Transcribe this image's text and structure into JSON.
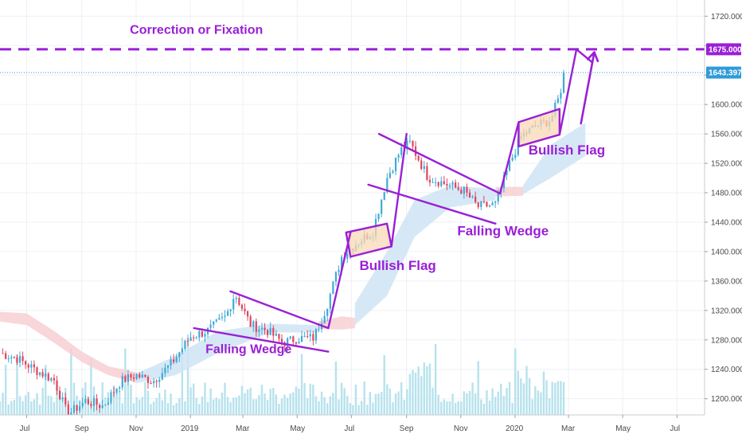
{
  "chart_data": {
    "type": "candlestick",
    "instrument_note": "",
    "x_ticks": [
      "Jul",
      "Sep",
      "Nov",
      "2019",
      "Mar",
      "May",
      "Jul",
      "Sep",
      "Nov",
      "2020",
      "Mar",
      "May",
      "Jul"
    ],
    "y_ticks": [
      1200,
      1240,
      1280,
      1320,
      1360,
      1400,
      1440,
      1480,
      1520,
      1560,
      1600,
      1640,
      1680,
      1720
    ],
    "y_tick_labels": [
      "1200.000",
      "1240.000",
      "1280.000",
      "1320.000",
      "1360.000",
      "1400.000",
      "1440.000",
      "1480.000",
      "1520.000",
      "1560.000",
      "1600.000",
      "",
      "",
      "1720.000"
    ],
    "ylim": [
      1178,
      1742
    ],
    "x_range": [
      "2018-06-01",
      "2020-08-01"
    ],
    "grid": true,
    "price_labels": [
      {
        "value": 1675,
        "text": "1675.000",
        "color": "#9a1fd6"
      },
      {
        "value": 1643.397,
        "text": "1643.397",
        "color": "#2f9bd9"
      }
    ],
    "horizontal_lines": [
      {
        "value": 1675,
        "style": "dashed",
        "color": "#9a1fd6"
      },
      {
        "value": 1643.397,
        "style": "dotted",
        "color": "#2f9bd9"
      }
    ],
    "price_path": [
      {
        "date": "2018-06-01",
        "price": 1262
      },
      {
        "date": "2018-06-20",
        "price": 1255
      },
      {
        "date": "2018-07-10",
        "price": 1240
      },
      {
        "date": "2018-08-01",
        "price": 1225
      },
      {
        "date": "2018-08-16",
        "price": 1178
      },
      {
        "date": "2018-09-05",
        "price": 1197
      },
      {
        "date": "2018-09-25",
        "price": 1190
      },
      {
        "date": "2018-10-15",
        "price": 1224
      },
      {
        "date": "2018-11-01",
        "price": 1232
      },
      {
        "date": "2018-11-20",
        "price": 1224
      },
      {
        "date": "2018-12-10",
        "price": 1247
      },
      {
        "date": "2019-01-01",
        "price": 1284
      },
      {
        "date": "2019-01-20",
        "price": 1292
      },
      {
        "date": "2019-02-10",
        "price": 1312
      },
      {
        "date": "2019-02-20",
        "price": 1343
      },
      {
        "date": "2019-03-10",
        "price": 1300
      },
      {
        "date": "2019-03-28",
        "price": 1293
      },
      {
        "date": "2019-04-15",
        "price": 1276
      },
      {
        "date": "2019-05-01",
        "price": 1282
      },
      {
        "date": "2019-05-20",
        "price": 1283
      },
      {
        "date": "2019-06-03",
        "price": 1325
      },
      {
        "date": "2019-06-20",
        "price": 1393
      },
      {
        "date": "2019-07-05",
        "price": 1410
      },
      {
        "date": "2019-07-25",
        "price": 1427
      },
      {
        "date": "2019-08-10",
        "price": 1500
      },
      {
        "date": "2019-08-25",
        "price": 1537
      },
      {
        "date": "2019-09-05",
        "price": 1548
      },
      {
        "date": "2019-09-25",
        "price": 1501
      },
      {
        "date": "2019-10-15",
        "price": 1492
      },
      {
        "date": "2019-11-05",
        "price": 1482
      },
      {
        "date": "2019-11-20",
        "price": 1461
      },
      {
        "date": "2019-12-10",
        "price": 1464
      },
      {
        "date": "2019-12-25",
        "price": 1517
      },
      {
        "date": "2020-01-08",
        "price": 1557
      },
      {
        "date": "2020-01-25",
        "price": 1571
      },
      {
        "date": "2020-02-10",
        "price": 1579
      },
      {
        "date": "2020-02-20",
        "price": 1612
      },
      {
        "date": "2020-02-25",
        "price": 1643
      }
    ],
    "annotations": [
      {
        "text": "Correction or Fixation",
        "date": "2018-10-25",
        "price": 1696
      },
      {
        "text": "Falling Wedge",
        "date": "2019-01-18",
        "price": 1262
      },
      {
        "text": "Bullish Flag",
        "date": "2019-07-10",
        "price": 1375
      },
      {
        "text": "Falling Wedge",
        "date": "2019-10-28",
        "price": 1422
      },
      {
        "text": "Bullish Flag",
        "date": "2020-01-16",
        "price": 1532
      }
    ],
    "patterns": [
      {
        "name": "falling-wedge-1",
        "type": "lines",
        "lines": [
          {
            "from": {
              "date": "2019-01-05",
              "price": 1296
            },
            "to": {
              "date": "2019-06-05",
              "price": 1264
            }
          },
          {
            "from": {
              "date": "2019-02-15",
              "price": 1346
            },
            "to": {
              "date": "2019-06-05",
              "price": 1296
            }
          }
        ]
      },
      {
        "name": "bullish-flag-1",
        "type": "box",
        "corners": [
          {
            "date": "2019-06-25",
            "price": 1426
          },
          {
            "date": "2019-08-10",
            "price": 1438
          },
          {
            "date": "2019-08-15",
            "price": 1407
          },
          {
            "date": "2019-06-30",
            "price": 1393
          }
        ]
      },
      {
        "name": "falling-wedge-2",
        "type": "lines",
        "lines": [
          {
            "from": {
              "date": "2019-08-01",
              "price": 1560
            },
            "to": {
              "date": "2019-12-15",
              "price": 1479
            }
          },
          {
            "from": {
              "date": "2019-07-20",
              "price": 1491
            },
            "to": {
              "date": "2019-12-10",
              "price": 1438
            }
          }
        ]
      },
      {
        "name": "bullish-flag-2",
        "type": "box",
        "corners": [
          {
            "date": "2020-01-05",
            "price": 1576
          },
          {
            "date": "2020-02-20",
            "price": 1594
          },
          {
            "date": "2020-02-20",
            "price": 1559
          },
          {
            "date": "2020-01-05",
            "price": 1543
          }
        ]
      },
      {
        "name": "breakout-leg-1",
        "type": "lines",
        "lines": [
          {
            "from": {
              "date": "2019-06-05",
              "price": 1296
            },
            "to": {
              "date": "2019-06-30",
              "price": 1426
            }
          },
          {
            "from": {
              "date": "2019-08-15",
              "price": 1407
            },
            "to": {
              "date": "2019-09-01",
              "price": 1560
            }
          },
          {
            "from": {
              "date": "2019-12-15",
              "price": 1479
            },
            "to": {
              "date": "2020-01-05",
              "price": 1576
            }
          },
          {
            "from": {
              "date": "2020-02-20",
              "price": 1559
            },
            "to": {
              "date": "2020-03-10",
              "price": 1675
            }
          },
          {
            "from": {
              "date": "2020-03-10",
              "price": 1675
            },
            "to": {
              "date": "2020-03-28",
              "price": 1657
            }
          }
        ]
      },
      {
        "name": "projection-arrow",
        "type": "arrow",
        "from": {
          "date": "2020-03-15",
          "price": 1574
        },
        "to": {
          "date": "2020-03-30",
          "price": 1671
        }
      }
    ],
    "cloud_bands": [
      {
        "color": "#f7cfd2",
        "points": [
          {
            "date": "2018-06-01",
            "upper": 1318,
            "lower": 1305
          },
          {
            "date": "2018-07-01",
            "upper": 1316,
            "lower": 1300
          },
          {
            "date": "2018-08-01",
            "upper": 1292,
            "lower": 1276
          },
          {
            "date": "2018-09-01",
            "upper": 1264,
            "lower": 1250
          },
          {
            "date": "2018-10-01",
            "upper": 1244,
            "lower": 1232
          },
          {
            "date": "2018-11-01",
            "upper": 1236,
            "lower": 1222
          }
        ]
      },
      {
        "color": "#cfe4f5",
        "points": [
          {
            "date": "2018-11-01",
            "upper": 1234,
            "lower": 1221
          },
          {
            "date": "2018-12-15",
            "upper": 1258,
            "lower": 1232
          },
          {
            "date": "2019-02-01",
            "upper": 1292,
            "lower": 1262
          },
          {
            "date": "2019-04-01",
            "upper": 1302,
            "lower": 1290
          },
          {
            "date": "2019-05-25",
            "upper": 1300,
            "lower": 1290
          }
        ]
      },
      {
        "color": "#f7cfd2",
        "points": [
          {
            "date": "2019-05-25",
            "upper": 1305,
            "lower": 1295
          },
          {
            "date": "2019-06-20",
            "upper": 1312,
            "lower": 1294
          },
          {
            "date": "2019-07-05",
            "upper": 1310,
            "lower": 1296
          }
        ]
      },
      {
        "color": "#cfe4f5",
        "points": [
          {
            "date": "2019-07-05",
            "upper": 1330,
            "lower": 1300
          },
          {
            "date": "2019-08-10",
            "upper": 1400,
            "lower": 1340
          },
          {
            "date": "2019-09-10",
            "upper": 1470,
            "lower": 1420
          },
          {
            "date": "2019-10-20",
            "upper": 1490,
            "lower": 1460
          },
          {
            "date": "2019-12-10",
            "upper": 1485,
            "lower": 1470
          }
        ]
      },
      {
        "color": "#f7cfd2",
        "points": [
          {
            "date": "2019-12-10",
            "upper": 1488,
            "lower": 1475
          },
          {
            "date": "2020-01-10",
            "upper": 1488,
            "lower": 1476
          }
        ]
      },
      {
        "color": "#cfe4f5",
        "points": [
          {
            "date": "2020-01-10",
            "upper": 1490,
            "lower": 1478
          },
          {
            "date": "2020-02-10",
            "upper": 1545,
            "lower": 1500
          },
          {
            "date": "2020-03-20",
            "upper": 1575,
            "lower": 1530
          }
        ]
      }
    ],
    "colors": {
      "up": "#3fa9d6",
      "down": "#e0455f",
      "annotation": "#9a1fd6",
      "volume": "#b7e2ed",
      "flag_fill": "#f8d9b5"
    }
  }
}
